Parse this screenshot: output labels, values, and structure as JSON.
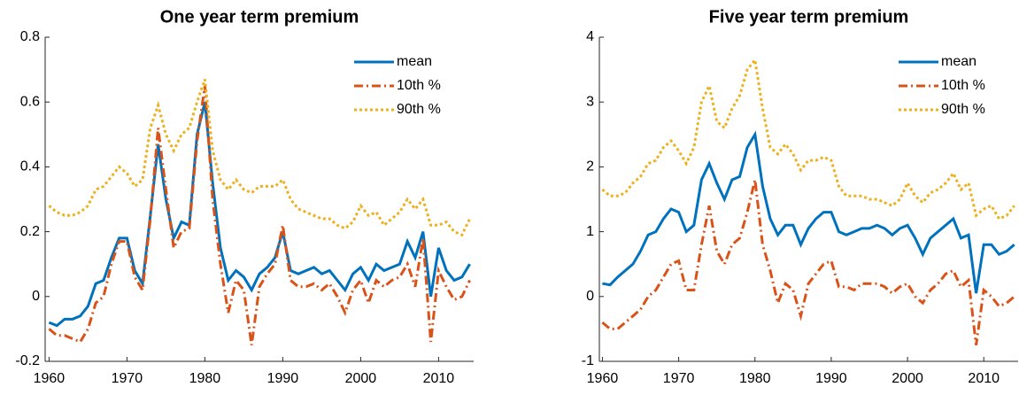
{
  "chart_data": [
    {
      "type": "line",
      "title": "One year term premium",
      "x": [
        1960,
        1961,
        1962,
        1963,
        1964,
        1965,
        1966,
        1967,
        1968,
        1969,
        1970,
        1971,
        1972,
        1973,
        1974,
        1975,
        1976,
        1977,
        1978,
        1979,
        1980,
        1981,
        1982,
        1983,
        1984,
        1985,
        1986,
        1987,
        1988,
        1989,
        1990,
        1991,
        1992,
        1993,
        1994,
        1995,
        1996,
        1997,
        1998,
        1999,
        2000,
        2001,
        2002,
        2003,
        2004,
        2005,
        2006,
        2007,
        2008,
        2009,
        2010,
        2011,
        2012,
        2013,
        2014
      ],
      "series": [
        {
          "name": "mean",
          "color": "#0072bd",
          "style": "solid",
          "values": [
            -0.08,
            -0.09,
            -0.07,
            -0.07,
            -0.06,
            -0.03,
            0.04,
            0.05,
            0.12,
            0.18,
            0.18,
            0.08,
            0.04,
            0.25,
            0.47,
            0.3,
            0.18,
            0.23,
            0.22,
            0.5,
            0.6,
            0.35,
            0.15,
            0.05,
            0.08,
            0.06,
            0.02,
            0.07,
            0.09,
            0.12,
            0.2,
            0.08,
            0.07,
            0.08,
            0.09,
            0.07,
            0.08,
            0.05,
            0.02,
            0.07,
            0.09,
            0.05,
            0.1,
            0.08,
            0.09,
            0.1,
            0.17,
            0.12,
            0.2,
            0.0,
            0.15,
            0.08,
            0.05,
            0.06,
            0.1
          ]
        },
        {
          "name": "10th %",
          "color": "#d95319",
          "style": "dashdot",
          "values": [
            -0.1,
            -0.12,
            -0.12,
            -0.13,
            -0.14,
            -0.1,
            -0.02,
            0.0,
            0.1,
            0.17,
            0.17,
            0.06,
            0.02,
            0.24,
            0.52,
            0.33,
            0.15,
            0.2,
            0.21,
            0.48,
            0.65,
            0.3,
            0.1,
            -0.05,
            0.05,
            0.02,
            -0.15,
            0.03,
            0.07,
            0.1,
            0.22,
            0.05,
            0.03,
            0.03,
            0.04,
            0.02,
            0.04,
            0.0,
            -0.05,
            0.02,
            0.05,
            -0.02,
            0.05,
            0.03,
            0.05,
            0.06,
            0.1,
            0.03,
            0.18,
            -0.14,
            0.08,
            0.03,
            -0.01,
            0.0,
            0.05
          ]
        },
        {
          "name": "90th %",
          "color": "#edb120",
          "style": "dotted",
          "values": [
            0.28,
            0.26,
            0.25,
            0.25,
            0.26,
            0.28,
            0.33,
            0.34,
            0.37,
            0.4,
            0.38,
            0.34,
            0.36,
            0.52,
            0.59,
            0.5,
            0.45,
            0.5,
            0.52,
            0.6,
            0.67,
            0.45,
            0.36,
            0.33,
            0.36,
            0.33,
            0.32,
            0.34,
            0.34,
            0.34,
            0.36,
            0.3,
            0.27,
            0.26,
            0.25,
            0.24,
            0.24,
            0.22,
            0.21,
            0.23,
            0.28,
            0.25,
            0.26,
            0.22,
            0.24,
            0.26,
            0.3,
            0.27,
            0.3,
            0.22,
            0.22,
            0.23,
            0.2,
            0.19,
            0.24
          ]
        }
      ],
      "xlim": [
        1959.5,
        2014.5
      ],
      "xticks": [
        1960,
        1970,
        1980,
        1990,
        2000,
        2010
      ],
      "ylim": [
        -0.2,
        0.8
      ],
      "yticks": [
        -0.2,
        0,
        0.2,
        0.4,
        0.6,
        0.8
      ],
      "legend": "upper right"
    },
    {
      "type": "line",
      "title": "Five year term premium",
      "x": [
        1960,
        1961,
        1962,
        1963,
        1964,
        1965,
        1966,
        1967,
        1968,
        1969,
        1970,
        1971,
        1972,
        1973,
        1974,
        1975,
        1976,
        1977,
        1978,
        1979,
        1980,
        1981,
        1982,
        1983,
        1984,
        1985,
        1986,
        1987,
        1988,
        1989,
        1990,
        1991,
        1992,
        1993,
        1994,
        1995,
        1996,
        1997,
        1998,
        1999,
        2000,
        2001,
        2002,
        2003,
        2004,
        2005,
        2006,
        2007,
        2008,
        2009,
        2010,
        2011,
        2012,
        2013,
        2014
      ],
      "series": [
        {
          "name": "mean",
          "color": "#0072bd",
          "style": "solid",
          "values": [
            0.2,
            0.18,
            0.3,
            0.4,
            0.5,
            0.7,
            0.95,
            1.0,
            1.2,
            1.35,
            1.3,
            1.0,
            1.1,
            1.8,
            2.05,
            1.75,
            1.5,
            1.8,
            1.85,
            2.3,
            2.5,
            1.7,
            1.2,
            0.95,
            1.1,
            1.1,
            0.8,
            1.05,
            1.2,
            1.3,
            1.3,
            1.0,
            0.95,
            1.0,
            1.05,
            1.05,
            1.1,
            1.05,
            0.95,
            1.05,
            1.1,
            0.9,
            0.65,
            0.9,
            1.0,
            1.1,
            1.2,
            0.9,
            0.95,
            0.05,
            0.8,
            0.8,
            0.65,
            0.7,
            0.8
          ]
        },
        {
          "name": "10th %",
          "color": "#d95319",
          "style": "dashdot",
          "values": [
            -0.4,
            -0.5,
            -0.5,
            -0.4,
            -0.3,
            -0.2,
            0.0,
            0.1,
            0.3,
            0.5,
            0.55,
            0.1,
            0.1,
            0.8,
            1.4,
            0.7,
            0.5,
            0.8,
            0.9,
            1.3,
            1.8,
            0.8,
            0.4,
            -0.1,
            0.2,
            0.1,
            -0.3,
            0.2,
            0.35,
            0.5,
            0.55,
            0.15,
            0.15,
            0.1,
            0.2,
            0.2,
            0.2,
            0.15,
            0.05,
            0.15,
            0.2,
            0.0,
            -0.1,
            0.1,
            0.2,
            0.35,
            0.4,
            0.15,
            0.25,
            -0.75,
            0.1,
            0.0,
            -0.15,
            -0.1,
            0.0
          ]
        },
        {
          "name": "90th %",
          "color": "#edb120",
          "style": "dotted",
          "values": [
            1.65,
            1.55,
            1.55,
            1.6,
            1.75,
            1.85,
            2.05,
            2.1,
            2.3,
            2.4,
            2.25,
            2.05,
            2.3,
            3.0,
            3.25,
            2.7,
            2.6,
            2.9,
            3.1,
            3.5,
            3.65,
            2.9,
            2.3,
            2.2,
            2.35,
            2.2,
            1.95,
            2.1,
            2.1,
            2.15,
            2.1,
            1.7,
            1.55,
            1.55,
            1.55,
            1.5,
            1.5,
            1.45,
            1.4,
            1.5,
            1.75,
            1.55,
            1.45,
            1.6,
            1.65,
            1.75,
            1.9,
            1.65,
            1.75,
            1.25,
            1.35,
            1.4,
            1.2,
            1.25,
            1.4
          ]
        }
      ],
      "xlim": [
        1959.6,
        2014.5
      ],
      "xticks": [
        1960,
        1970,
        1980,
        1990,
        2000,
        2010
      ],
      "ylim": [
        -1,
        4
      ],
      "yticks": [
        -1,
        0,
        1,
        2,
        3,
        4
      ],
      "legend": "upper right"
    }
  ]
}
